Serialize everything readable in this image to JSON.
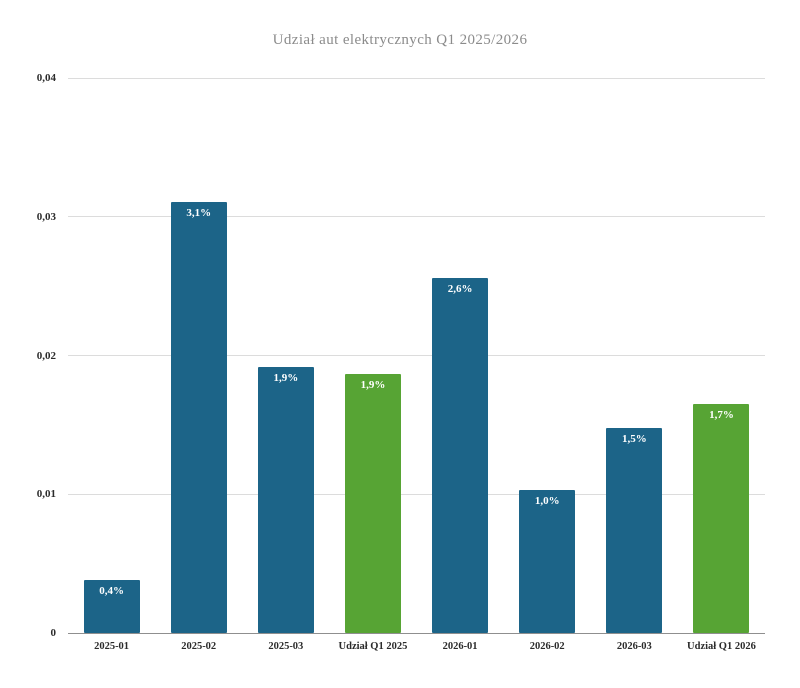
{
  "chart_data": {
    "type": "bar",
    "title": "Udział aut elektrycznych Q1 2025/2026",
    "categories": [
      "2025-01",
      "2025-02",
      "2025-03",
      "Udział Q1 2025",
      "2026-01",
      "2026-02",
      "2026-03",
      "Udział Q1 2026"
    ],
    "values": [
      0.0038,
      0.0311,
      0.0192,
      0.0187,
      0.0256,
      0.0103,
      0.0148,
      0.0165
    ],
    "bar_labels": [
      "0,4%",
      "3,1%",
      "1,9%",
      "1,9%",
      "2,6%",
      "1,0%",
      "1,5%",
      "1,7%"
    ],
    "bar_colors": [
      "#1c6488",
      "#1c6488",
      "#1c6488",
      "#57a434",
      "#1c6488",
      "#1c6488",
      "#1c6488",
      "#57a434"
    ],
    "ylim": [
      0,
      0.04
    ],
    "yticks": [
      0,
      0.01,
      0.02,
      0.03,
      0.04
    ],
    "ytick_labels": [
      "0",
      "0,01",
      "0,02",
      "0,03",
      "0,04"
    ],
    "xlabel": "",
    "ylabel": "",
    "grid": true,
    "legend": "none"
  },
  "colors": {
    "background": "#ffffff",
    "bar_blue": "#1c6488",
    "bar_green": "#57a434",
    "gridline": "#dcdcdc",
    "axis_line": "#8f8f8f",
    "title_text": "#8b8b8b",
    "tick_text": "#2b2b2b",
    "bar_label_text": "#ffffff"
  }
}
